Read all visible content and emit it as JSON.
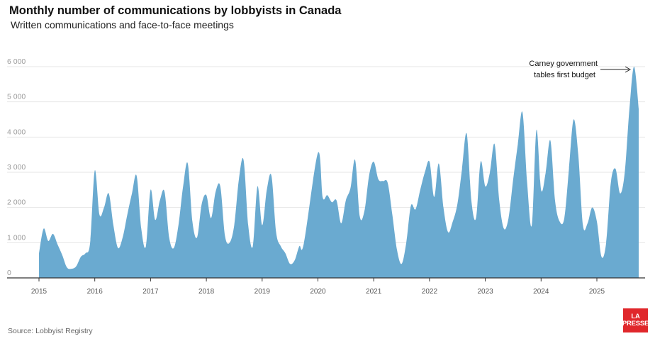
{
  "header": {
    "title": "Monthly number of communications by lobbyists in Canada",
    "subtitle": "Written communications and face-to-face meetings"
  },
  "footer": {
    "source": "Source: Lobbyist Registry",
    "logo_line1": "LA",
    "logo_line2": "PRESSE"
  },
  "colors": {
    "area": "#6aaad0",
    "gridline": "#e6e6e6",
    "axis": "#333333",
    "logo": "#e0272b"
  },
  "chart_data": {
    "type": "area",
    "title": "Monthly number of communications by lobbyists in Canada",
    "subtitle": "Written communications and face-to-face meetings",
    "xlabel": "",
    "ylabel": "",
    "ylim": [
      0,
      6000
    ],
    "xlim": [
      "2015-01",
      "2025-11"
    ],
    "grid": true,
    "y_ticks": [
      0,
      1000,
      2000,
      3000,
      4000,
      5000,
      6000
    ],
    "y_tick_labels": [
      "0",
      "1 000",
      "2 000",
      "3 000",
      "4 000",
      "5 000",
      "6 000"
    ],
    "x_ticks": [
      "2015-01",
      "2016-01",
      "2017-01",
      "2018-01",
      "2019-01",
      "2020-01",
      "2021-01",
      "2022-01",
      "2023-01",
      "2024-01",
      "2025-01"
    ],
    "x_tick_labels": [
      "2015",
      "2016",
      "2017",
      "2018",
      "2019",
      "2020",
      "2021",
      "2022",
      "2023",
      "2024",
      "2025"
    ],
    "annotation": {
      "lines": [
        "Carney government",
        "tables first budget"
      ],
      "target_x": "2025-10",
      "target_y": 6000
    },
    "series": [
      {
        "points": [
          [
            "2015-01",
            700
          ],
          [
            "2015-02",
            1400
          ],
          [
            "2015-03",
            1050
          ],
          [
            "2015-04",
            1250
          ],
          [
            "2015-05",
            950
          ],
          [
            "2015-06",
            650
          ],
          [
            "2015-07",
            300
          ],
          [
            "2015-08",
            260
          ],
          [
            "2015-09",
            330
          ],
          [
            "2015-10",
            600
          ],
          [
            "2015-11",
            700
          ],
          [
            "2015-12",
            1000
          ],
          [
            "2016-01",
            3050
          ],
          [
            "2016-02",
            1800
          ],
          [
            "2016-03",
            2000
          ],
          [
            "2016-04",
            2400
          ],
          [
            "2016-05",
            1500
          ],
          [
            "2016-06",
            850
          ],
          [
            "2016-07",
            1150
          ],
          [
            "2016-08",
            1800
          ],
          [
            "2016-09",
            2400
          ],
          [
            "2016-10",
            2900
          ],
          [
            "2016-11",
            1400
          ],
          [
            "2016-12",
            900
          ],
          [
            "2017-01",
            2500
          ],
          [
            "2017-02",
            1650
          ],
          [
            "2017-03",
            2200
          ],
          [
            "2017-04",
            2450
          ],
          [
            "2017-05",
            1150
          ],
          [
            "2017-06",
            850
          ],
          [
            "2017-07",
            1500
          ],
          [
            "2017-08",
            2600
          ],
          [
            "2017-09",
            3250
          ],
          [
            "2017-10",
            1600
          ],
          [
            "2017-11",
            1150
          ],
          [
            "2017-12",
            2100
          ],
          [
            "2018-01",
            2350
          ],
          [
            "2018-02",
            1700
          ],
          [
            "2018-03",
            2450
          ],
          [
            "2018-04",
            2600
          ],
          [
            "2018-05",
            1200
          ],
          [
            "2018-06",
            1000
          ],
          [
            "2018-07",
            1500
          ],
          [
            "2018-08",
            2800
          ],
          [
            "2018-09",
            3350
          ],
          [
            "2018-10",
            1500
          ],
          [
            "2018-11",
            900
          ],
          [
            "2018-12",
            2600
          ],
          [
            "2019-01",
            1500
          ],
          [
            "2019-02",
            2500
          ],
          [
            "2019-03",
            2900
          ],
          [
            "2019-04",
            1300
          ],
          [
            "2019-05",
            900
          ],
          [
            "2019-06",
            700
          ],
          [
            "2019-07",
            400
          ],
          [
            "2019-08",
            500
          ],
          [
            "2019-09",
            900
          ],
          [
            "2019-10",
            1000
          ],
          [
            "2020-01",
            3550
          ],
          [
            "2020-02",
            2300
          ],
          [
            "2020-03",
            2350
          ],
          [
            "2020-04",
            2150
          ],
          [
            "2020-05",
            2200
          ],
          [
            "2020-06",
            1550
          ],
          [
            "2020-07",
            2200
          ],
          [
            "2020-08",
            2550
          ],
          [
            "2020-09",
            3350
          ],
          [
            "2020-10",
            1750
          ],
          [
            "2020-11",
            1900
          ],
          [
            "2020-12",
            2900
          ],
          [
            "2021-01",
            3300
          ],
          [
            "2021-02",
            2800
          ],
          [
            "2021-03",
            2750
          ],
          [
            "2021-04",
            2700
          ],
          [
            "2021-05",
            1800
          ],
          [
            "2021-06",
            800
          ],
          [
            "2021-07",
            400
          ],
          [
            "2021-08",
            1000
          ],
          [
            "2021-09",
            2050
          ],
          [
            "2021-10",
            1950
          ],
          [
            "2021-11",
            2500
          ],
          [
            "2021-12",
            3000
          ],
          [
            "2022-01",
            3300
          ],
          [
            "2022-02",
            2300
          ],
          [
            "2022-03",
            3250
          ],
          [
            "2022-04",
            2000
          ],
          [
            "2022-05",
            1300
          ],
          [
            "2022-06",
            1600
          ],
          [
            "2022-07",
            2100
          ],
          [
            "2022-08",
            3100
          ],
          [
            "2022-09",
            4100
          ],
          [
            "2022-10",
            2200
          ],
          [
            "2022-11",
            1700
          ],
          [
            "2022-12",
            3300
          ],
          [
            "2023-01",
            2600
          ],
          [
            "2023-02",
            3000
          ],
          [
            "2023-03",
            3800
          ],
          [
            "2023-04",
            2200
          ],
          [
            "2023-05",
            1400
          ],
          [
            "2023-06",
            1700
          ],
          [
            "2023-07",
            2800
          ],
          [
            "2023-08",
            3800
          ],
          [
            "2023-09",
            4700
          ],
          [
            "2023-10",
            2700
          ],
          [
            "2023-11",
            1500
          ],
          [
            "2023-12",
            4200
          ],
          [
            "2024-01",
            2500
          ],
          [
            "2024-02",
            3000
          ],
          [
            "2024-03",
            3900
          ],
          [
            "2024-04",
            2200
          ],
          [
            "2024-05",
            1600
          ],
          [
            "2024-06",
            1700
          ],
          [
            "2024-07",
            3100
          ],
          [
            "2024-08",
            4500
          ],
          [
            "2024-09",
            3500
          ],
          [
            "2024-10",
            1500
          ],
          [
            "2024-11",
            1550
          ],
          [
            "2024-12",
            2000
          ],
          [
            "2025-01",
            1600
          ],
          [
            "2025-02",
            600
          ],
          [
            "2025-03",
            1000
          ],
          [
            "2025-04",
            2700
          ],
          [
            "2025-05",
            3100
          ],
          [
            "2025-06",
            2400
          ],
          [
            "2025-07",
            3000
          ],
          [
            "2025-08",
            4800
          ],
          [
            "2025-09",
            6000
          ],
          [
            "2025-10",
            4800
          ]
        ]
      }
    ]
  }
}
